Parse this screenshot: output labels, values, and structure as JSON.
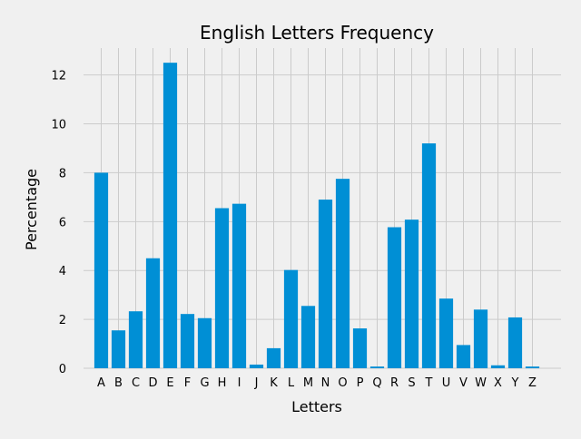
{
  "chart_data": {
    "type": "bar",
    "title": "English Letters Frequency",
    "xlabel": "Letters",
    "ylabel": "Percentage",
    "categories": [
      "A",
      "B",
      "C",
      "D",
      "E",
      "F",
      "G",
      "H",
      "I",
      "J",
      "K",
      "L",
      "M",
      "N",
      "O",
      "P",
      "Q",
      "R",
      "S",
      "T",
      "U",
      "V",
      "W",
      "X",
      "Y",
      "Z"
    ],
    "values": [
      8.0,
      1.55,
      2.33,
      4.5,
      12.5,
      2.22,
      2.05,
      6.55,
      6.73,
      0.15,
      0.82,
      4.02,
      2.55,
      6.9,
      7.75,
      1.63,
      0.07,
      5.77,
      6.08,
      9.2,
      2.85,
      0.95,
      2.4,
      0.12,
      2.08,
      0.07
    ],
    "yticks": [
      "0",
      "2",
      "4",
      "6",
      "8",
      "10",
      "12"
    ],
    "ylim": [
      0,
      13.1
    ],
    "grid": true,
    "bar_color": "#008fd5",
    "background_color": "#f0f0f0",
    "grid_color": "#cbcbcb"
  }
}
